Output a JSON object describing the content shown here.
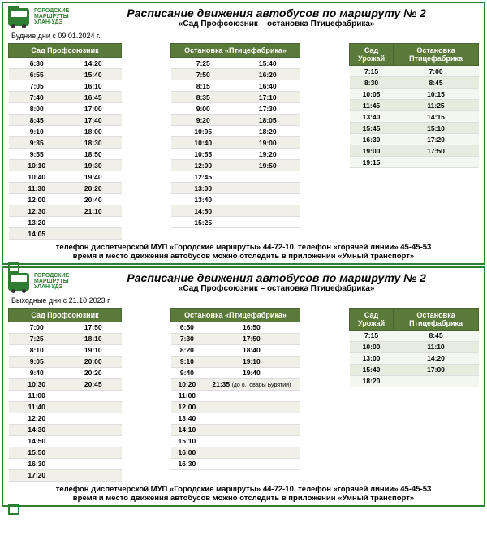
{
  "logo": {
    "l1": "ГОРОДСКИЕ",
    "l2": "МАРШРУТЫ",
    "l3": "УЛАН-УДЭ"
  },
  "panels": [
    {
      "title": "Расписание движения автобусов по маршруту № 2",
      "subtitle": "«Сад Профсоюзник – остановка Птицефабрика»",
      "dayline": "Будние дни с 09.01.2024 г.",
      "tables": [
        {
          "cls": "t1",
          "headers": [
            "Сад Профсоюзник"
          ],
          "headerSpan": 2,
          "rows": [
            [
              "6:30",
              "14:20"
            ],
            [
              "6:55",
              "15:40"
            ],
            [
              "7:05",
              "16:10"
            ],
            [
              "7:40",
              "16:45"
            ],
            [
              "8:00",
              "17:00"
            ],
            [
              "8:45",
              "17:40"
            ],
            [
              "9:10",
              "18:00"
            ],
            [
              "9:35",
              "18:30"
            ],
            [
              "9:55",
              "18:50"
            ],
            [
              "10:10",
              "19:30"
            ],
            [
              "10:40",
              "19:40"
            ],
            [
              "11:30",
              "20:20"
            ],
            [
              "12:00",
              "20:40"
            ],
            [
              "12:30",
              "21:10"
            ],
            [
              "13:20",
              ""
            ],
            [
              "14:05",
              ""
            ]
          ]
        },
        {
          "cls": "t2",
          "headers": [
            "Остановка «Птицефабрика»"
          ],
          "headerSpan": 2,
          "rows": [
            [
              "7:25",
              "15:40"
            ],
            [
              "7:50",
              "16:20"
            ],
            [
              "8:15",
              "16:40"
            ],
            [
              "8:35",
              "17:10"
            ],
            [
              "9:00",
              "17:30"
            ],
            [
              "9:20",
              "18:05"
            ],
            [
              "10:05",
              "18:20"
            ],
            [
              "10:40",
              "19:00"
            ],
            [
              "10:55",
              "19:20"
            ],
            [
              "12:00",
              "19:50"
            ],
            [
              "12:45",
              ""
            ],
            [
              "13:00",
              ""
            ],
            [
              "13:40",
              ""
            ],
            [
              "14:50",
              ""
            ],
            [
              "15:25",
              ""
            ]
          ]
        },
        {
          "cls": "t3 alt",
          "headers": [
            "Сад Урожай",
            "Остановка Птицефабрика"
          ],
          "headerSpan": 1,
          "rows": [
            [
              "7:15",
              "7:00"
            ],
            [
              "8:30",
              "8:45"
            ],
            [
              "10:05",
              "10:15"
            ],
            [
              "11:45",
              "11:25"
            ],
            [
              "13:40",
              "14:15"
            ],
            [
              "15:45",
              "15:10"
            ],
            [
              "16:30",
              "17:20"
            ],
            [
              "19:00",
              "17:50"
            ],
            [
              "19:15",
              ""
            ]
          ]
        }
      ],
      "footer1": "телефон диспетчерской МУП «Городские маршруты» 44-72-10, телефон «горячей линии» 45-45-53",
      "footer2": "время и место движения автобусов можно отследить в приложении «Умный транспорт»"
    },
    {
      "title": "Расписание движения автобусов по маршруту № 2",
      "subtitle": "«Сад Профсоюзник – остановка Птицефабрика»",
      "dayline": "Выходные дни с 21.10.2023 г.",
      "tables": [
        {
          "cls": "t1",
          "headers": [
            "Сад Профсоюзник"
          ],
          "headerSpan": 2,
          "rows": [
            [
              "7:00",
              "17:50"
            ],
            [
              "7:25",
              "18:10"
            ],
            [
              "8:10",
              "19:10"
            ],
            [
              "9:05",
              "20:00"
            ],
            [
              "9:40",
              "20:20"
            ],
            [
              "10:30",
              "20:45"
            ],
            [
              "11:00",
              ""
            ],
            [
              "11:40",
              ""
            ],
            [
              "12:20",
              ""
            ],
            [
              "14:30",
              ""
            ],
            [
              "14:50",
              ""
            ],
            [
              "15:50",
              ""
            ],
            [
              "16:30",
              ""
            ],
            [
              "17:20",
              ""
            ]
          ]
        },
        {
          "cls": "t2",
          "headers": [
            "Остановка «Птицефабрика»"
          ],
          "headerSpan": 2,
          "rows": [
            [
              "6:50",
              "16:50"
            ],
            [
              "7:30",
              "17:50"
            ],
            [
              "8:20",
              "18:40"
            ],
            [
              "9:10",
              "19:10"
            ],
            [
              "9:40",
              "19:40"
            ],
            [
              "10:20",
              "21:35 <span class=\"small-note\">(до о.Товары Бурятии)</span>"
            ],
            [
              "11:00",
              ""
            ],
            [
              "12:00",
              ""
            ],
            [
              "13:40",
              ""
            ],
            [
              "14:10",
              ""
            ],
            [
              "15:10",
              ""
            ],
            [
              "16:00",
              ""
            ],
            [
              "16:30",
              ""
            ]
          ]
        },
        {
          "cls": "t3 alt",
          "headers": [
            "Сад Урожай",
            "Остановка Птицефабрика"
          ],
          "headerSpan": 1,
          "rows": [
            [
              "7:15",
              "8:45"
            ],
            [
              "10:00",
              "11:10"
            ],
            [
              "13:00",
              "14:20"
            ],
            [
              "15:40",
              "17:00"
            ],
            [
              "18:20",
              ""
            ]
          ]
        }
      ],
      "footer1": "телефон диспетчерской МУП «Городские маршруты» 44-72-10, телефон «горячей линии» 45-45-53",
      "footer2": "время и место движения автобусов можно отследить в приложении «Умный транспорт»"
    }
  ]
}
